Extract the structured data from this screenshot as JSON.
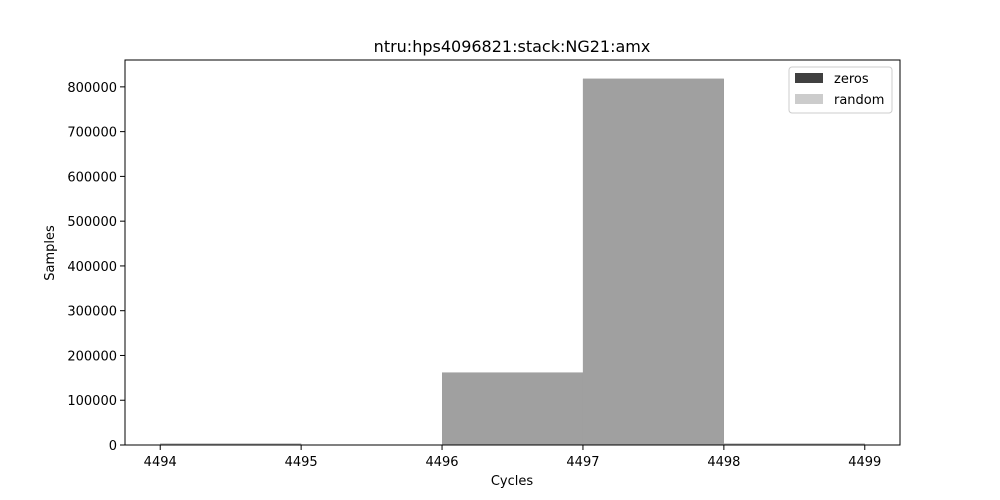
{
  "chart_data": {
    "type": "bar",
    "title": "ntru:hps4096821:stack:NG21:amx",
    "xlabel": "Cycles",
    "ylabel": "Samples",
    "xlim": [
      4493.75,
      4499.25
    ],
    "ylim": [
      0,
      860000
    ],
    "xticks": [
      4494,
      4495,
      4496,
      4497,
      4498,
      4499
    ],
    "yticks": [
      0,
      100000,
      200000,
      300000,
      400000,
      500000,
      600000,
      700000,
      800000
    ],
    "bin_edges": [
      4494,
      4495,
      4496,
      4497,
      4498,
      4499
    ],
    "series": [
      {
        "name": "zeros",
        "color": "#404040",
        "values": [
          3000,
          1000,
          162000,
          818000,
          3000
        ]
      },
      {
        "name": "random",
        "color": "#cccccc",
        "values": [
          3000,
          1000,
          162000,
          818000,
          3000
        ]
      }
    ],
    "overlap_color": "#a0a0a0",
    "legend_position": "top-right",
    "grid": false
  }
}
